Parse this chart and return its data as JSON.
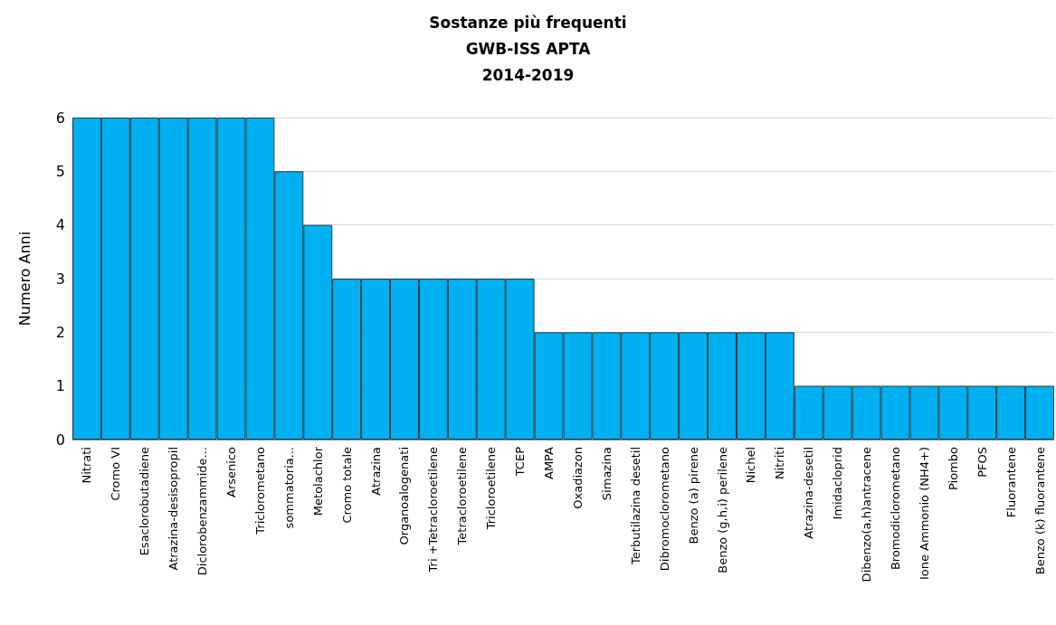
{
  "chart_data": {
    "type": "bar",
    "title": "Sostanze più frequenti\nGWB-ISS APTA\n2014-2019",
    "ylabel": "Numero Anni",
    "categories": [
      "Nitrati",
      "Cromo VI",
      "Esaclorobutadiene",
      "Atrazina-desisopropil",
      "Diclorobenzammide...",
      "Arsenico",
      "Triclorometano",
      "sommatoria...",
      "Metolachlor",
      "Cromo totale",
      "Atrazina",
      "Organoalogenati",
      "Tri +Tetracloroetilene",
      "Tetracloroetilene",
      "Tricloroetilene",
      "TCEP",
      "AMPA",
      "Oxadiazon",
      "Simazina",
      "Terbutilazina desetil",
      "Dibromoclorometano",
      "Benzo (a) pirene",
      "Benzo (g,h,i) perilene",
      "Nichel",
      "Nitriti",
      "Atrazina-desetil",
      "Imidacloprid",
      "Dibenzo(a,h)antracene",
      "Bromodiclorometano",
      "Ione Ammonio (NH4+)",
      "Piombo",
      "PFOS",
      "Fluorantene",
      "Benzo (k) fluorantene"
    ],
    "values": [
      6,
      6,
      6,
      6,
      6,
      6,
      6,
      5,
      4,
      3,
      3,
      3,
      3,
      3,
      3,
      3,
      2,
      2,
      2,
      2,
      2,
      2,
      2,
      2,
      2,
      1,
      1,
      1,
      1,
      1,
      1,
      1,
      1,
      1
    ],
    "color": "#00b0f0",
    "ylim": [
      0,
      6
    ],
    "yticks": [
      0,
      1,
      2,
      3,
      4,
      5,
      6
    ],
    "grid": "y"
  }
}
